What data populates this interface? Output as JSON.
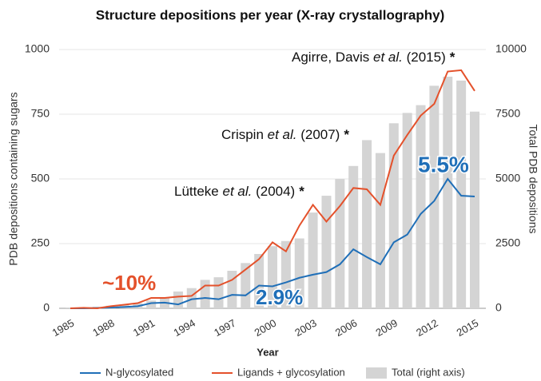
{
  "chart_data": {
    "type": "bar_line",
    "title": "Structure depositions per year (X-ray crystallography)",
    "x_label": "Year",
    "y_label": "PDB depositions containing sugars",
    "y2_label": "Total PDB depositions",
    "x": [
      1985,
      1986,
      1987,
      1988,
      1989,
      1990,
      1991,
      1992,
      1993,
      1994,
      1995,
      1996,
      1997,
      1998,
      1999,
      2000,
      2001,
      2002,
      2003,
      2004,
      2005,
      2006,
      2007,
      2008,
      2009,
      2010,
      2011,
      2012,
      2013,
      2014,
      2015
    ],
    "xlim": [
      1985,
      2015
    ],
    "xticks": [
      1985,
      1988,
      1991,
      1994,
      1997,
      2000,
      2003,
      2006,
      2009,
      2012,
      2015
    ],
    "ylim": [
      0,
      1000
    ],
    "yticks": [
      0,
      250,
      500,
      750,
      1000
    ],
    "y2lim": [
      0,
      10000
    ],
    "y2ticks": [
      0,
      2500,
      5000,
      7500,
      10000
    ],
    "grid": true,
    "legend": "bottom",
    "series": [
      {
        "name": "N-glycosylated",
        "kind": "line",
        "color": "#1f6fb8",
        "values": [
          0,
          0,
          1,
          3,
          5,
          8,
          20,
          22,
          15,
          35,
          40,
          35,
          52,
          50,
          88,
          85,
          100,
          118,
          130,
          140,
          170,
          228,
          198,
          170,
          255,
          285,
          365,
          415,
          500,
          435,
          432
        ]
      },
      {
        "name": "Ligands + glycosylation",
        "kind": "line",
        "color": "#e4512b",
        "values": [
          0,
          2,
          0,
          8,
          14,
          20,
          40,
          40,
          45,
          48,
          88,
          88,
          110,
          150,
          190,
          255,
          220,
          320,
          400,
          335,
          395,
          465,
          460,
          400,
          590,
          670,
          745,
          790,
          915,
          920,
          840
        ]
      },
      {
        "name": "Total (right axis)",
        "kind": "bar",
        "axis": "y2",
        "color": "#d4d4d4",
        "values": [
          30,
          40,
          60,
          100,
          150,
          200,
          300,
          400,
          650,
          780,
          1100,
          1200,
          1450,
          1750,
          2100,
          2400,
          2600,
          2700,
          3700,
          4350,
          5000,
          5500,
          6500,
          6000,
          7150,
          7550,
          7850,
          8600,
          8950,
          8800,
          7600
        ]
      }
    ],
    "annotations": [
      {
        "parts": [
          "Agirre, Davis ",
          "et al.",
          " (2015)",
          "*"
        ]
      },
      {
        "parts": [
          "Crispin ",
          "et al.",
          " (2007)",
          "*"
        ]
      },
      {
        "parts": [
          "Lütteke ",
          "et al.",
          " (2004)",
          "*"
        ]
      },
      {
        "text": "~10%",
        "color": "#e4512b"
      },
      {
        "text": "2.9%",
        "color": "#1f6fb8"
      },
      {
        "text": "5.5%",
        "color": "#1f6fb8"
      }
    ]
  }
}
